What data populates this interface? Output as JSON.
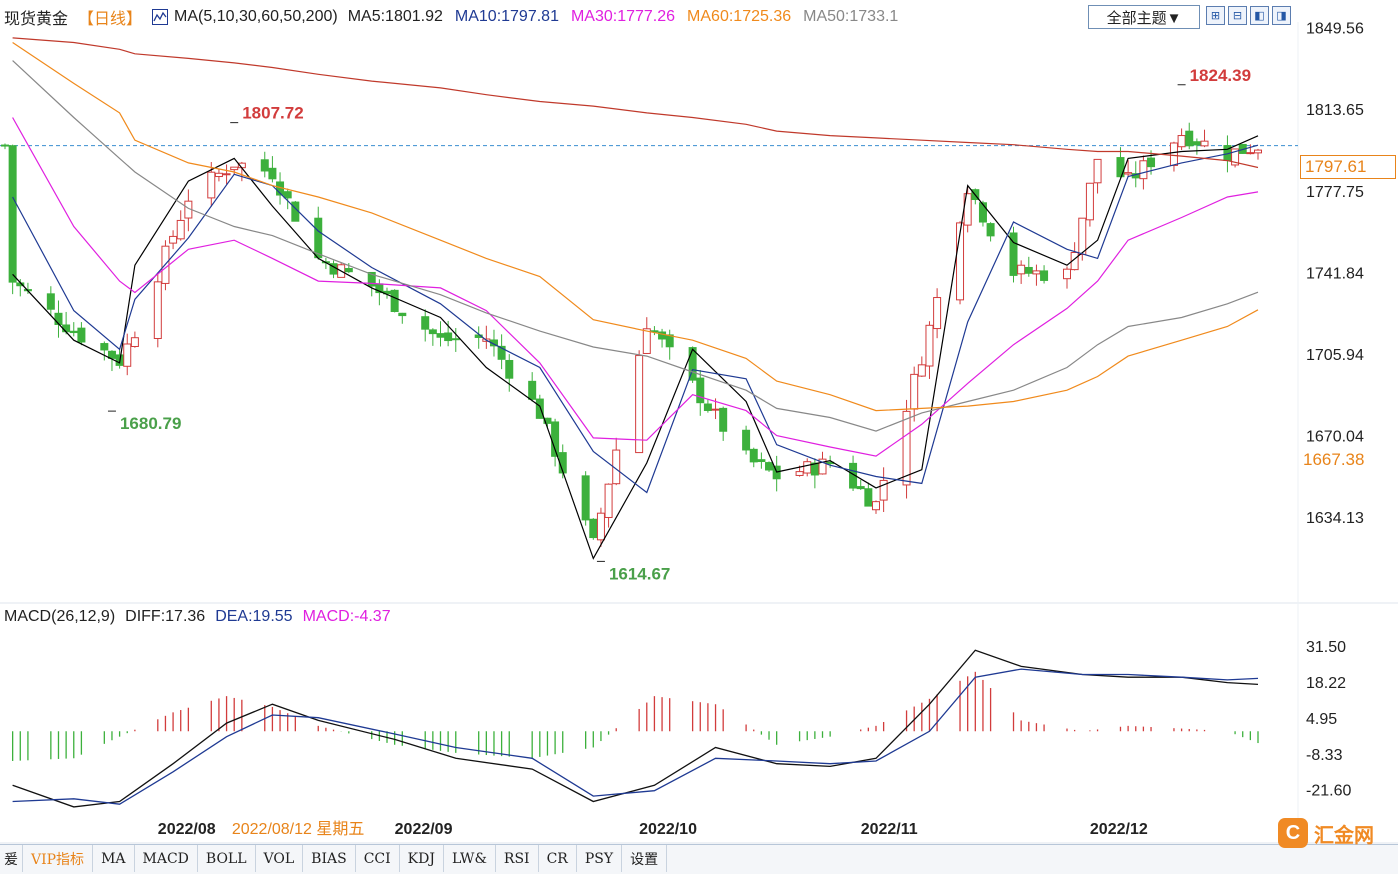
{
  "header": {
    "title": "现货黄金",
    "period": "【日线】",
    "ma_label": "MA(5,10,30,60,50,200)",
    "ma_values": [
      {
        "text": "MA5:1801.92",
        "color": "#222222"
      },
      {
        "text": "MA10:1797.81",
        "color": "#1f3a93"
      },
      {
        "text": "MA30:1777.26",
        "color": "#e020e0"
      },
      {
        "text": "MA60:1725.36",
        "color": "#f08a1c"
      },
      {
        "text": "MA50:1733.1",
        "color": "#888888"
      }
    ],
    "theme_button": "全部主题▼"
  },
  "macd_header": {
    "label": "MACD(26,12,9)",
    "diff": "DIFF:17.36",
    "dea": "DEA:19.55",
    "macd": "MACD:-4.37"
  },
  "current_price": "1797.61",
  "ma60_price": "1667.38",
  "cursor_date": "2022/08/12 星期五",
  "tabs": [
    "VIP指标",
    "MA",
    "MACD",
    "BOLL",
    "VOL",
    "BIAS",
    "CCI",
    "KDJ",
    "LW&",
    "RSI",
    "CR",
    "PSY",
    "设置"
  ],
  "logo": {
    "mark": "C",
    "text": "汇金网"
  },
  "colors": {
    "up": "#d23c3c",
    "down": "#3cb03c",
    "ma5": "#000000",
    "ma10": "#1f3a93",
    "ma30": "#e020e0",
    "ma60": "#f08a1c",
    "ma50": "#888888",
    "ma200": "#c0392b"
  },
  "chart_data": [
    {
      "type": "candlestick",
      "title": "现货黄金 日线",
      "ylim": [
        1610,
        1852
      ],
      "y_ticks": [
        1849.56,
        1813.65,
        1777.75,
        1741.84,
        1705.94,
        1670.04,
        1634.13
      ],
      "x_labels": [
        "2022/08",
        "2022/09",
        "2022/10",
        "2022/11",
        "2022/12"
      ],
      "annotations": [
        {
          "label": "1807.72",
          "kind": "high"
        },
        {
          "label": "1680.79",
          "kind": "low"
        },
        {
          "label": "1614.67",
          "kind": "low"
        },
        {
          "label": "1824.39",
          "kind": "high"
        }
      ],
      "close_path": [
        {
          "date": "2022-07-13",
          "close": 1738
        },
        {
          "date": "2022-07-21",
          "close": 1716
        },
        {
          "date": "2022-07-27",
          "close": 1703
        },
        {
          "date": "2022-07-29",
          "close": 1716
        },
        {
          "date": "2022-08-05",
          "close": 1775
        },
        {
          "date": "2022-08-11",
          "close": 1790
        },
        {
          "date": "2022-08-16",
          "close": 1786
        },
        {
          "date": "2022-08-22",
          "close": 1748
        },
        {
          "date": "2022-08-29",
          "close": 1736
        },
        {
          "date": "2022-09-07",
          "close": 1712
        },
        {
          "date": "2022-09-13",
          "close": 1713
        },
        {
          "date": "2022-09-20",
          "close": 1680
        },
        {
          "date": "2022-09-27",
          "close": 1622
        },
        {
          "date": "2022-10-04",
          "close": 1720
        },
        {
          "date": "2022-10-10",
          "close": 1692
        },
        {
          "date": "2022-10-17",
          "close": 1660
        },
        {
          "date": "2022-10-21",
          "close": 1652
        },
        {
          "date": "2022-10-28",
          "close": 1658
        },
        {
          "date": "2022-11-03",
          "close": 1640
        },
        {
          "date": "2022-11-09",
          "close": 1705
        },
        {
          "date": "2022-11-15",
          "close": 1780
        },
        {
          "date": "2022-11-21",
          "close": 1742
        },
        {
          "date": "2022-11-28",
          "close": 1741
        },
        {
          "date": "2022-12-02",
          "close": 1792
        },
        {
          "date": "2022-12-06",
          "close": 1782
        },
        {
          "date": "2022-12-13",
          "close": 1803
        },
        {
          "date": "2022-12-19",
          "close": 1794
        },
        {
          "date": "2022-12-23",
          "close": 1797.61
        }
      ],
      "series": [
        {
          "name": "MA5",
          "values": [
            1741,
            1712,
            1702,
            1745,
            1782,
            1792,
            1771,
            1748,
            1735,
            1722,
            1700,
            1683,
            1616,
            1658,
            1708,
            1685,
            1654,
            1659,
            1647,
            1655,
            1780,
            1755,
            1745,
            1756,
            1792,
            1795,
            1796,
            1801.92
          ]
        },
        {
          "name": "MA10",
          "values": [
            1775,
            1725,
            1708,
            1730,
            1757,
            1785,
            1780,
            1760,
            1744,
            1728,
            1712,
            1700,
            1663,
            1645,
            1699,
            1695,
            1666,
            1657,
            1652,
            1649,
            1720,
            1764,
            1752,
            1748,
            1784,
            1790,
            1794,
            1797.81
          ]
        },
        {
          "name": "MA30",
          "values": [
            1810,
            1762,
            1738,
            1733,
            1752,
            1756,
            1748,
            1738,
            1737,
            1735,
            1725,
            1702,
            1669,
            1668,
            1688,
            1681,
            1670,
            1665,
            1661,
            1675,
            1693,
            1710,
            1726,
            1738,
            1756,
            1766,
            1775,
            1777.26
          ]
        },
        {
          "name": "MA50",
          "values": [
            1835,
            1810,
            1792,
            1786,
            1770,
            1762,
            1758,
            1750,
            1741,
            1732,
            1724,
            1716,
            1709,
            1705,
            1698,
            1690,
            1682,
            1678,
            1672,
            1680,
            1685,
            1690,
            1700,
            1710,
            1718,
            1722,
            1728,
            1733.1
          ]
        },
        {
          "name": "MA60",
          "values": [
            1843,
            1825,
            1812,
            1800,
            1790,
            1786,
            1780,
            1775,
            1768,
            1756,
            1748,
            1740,
            1721,
            1716,
            1712,
            1704,
            1694,
            1688,
            1681,
            1682,
            1683,
            1685,
            1690,
            1696,
            1705,
            1712,
            1718,
            1725.36
          ]
        },
        {
          "name": "MA200",
          "values": [
            1845,
            1843,
            1840,
            1838,
            1836,
            1834,
            1832,
            1829,
            1826,
            1823,
            1820,
            1817,
            1815,
            1812,
            1810,
            1807,
            1804,
            1802,
            1801,
            1800,
            1799,
            1798,
            1796,
            1795,
            1795,
            1793,
            1791,
            1788
          ]
        }
      ]
    },
    {
      "type": "bar",
      "title": "MACD(26,12,9)",
      "ylim": [
        -31,
        36
      ],
      "y_ticks": [
        31.5,
        18.22,
        4.95,
        -8.33,
        -21.6
      ],
      "dates": [
        "2022-07-13",
        "2022-07-21",
        "2022-07-27",
        "2022-08-03",
        "2022-08-10",
        "2022-08-16",
        "2022-08-22",
        "2022-09-01",
        "2022-09-09",
        "2022-09-19",
        "2022-09-27",
        "2022-10-05",
        "2022-10-13",
        "2022-10-21",
        "2022-10-28",
        "2022-11-03",
        "2022-11-10",
        "2022-11-16",
        "2022-11-22",
        "2022-11-30",
        "2022-12-06",
        "2022-12-13",
        "2022-12-19",
        "2022-12-23"
      ],
      "series": [
        {
          "name": "DIFF",
          "values": [
            -20,
            -28,
            -26,
            -12,
            3,
            10,
            4,
            -3,
            -10,
            -14,
            -26,
            -20,
            -6,
            -12,
            -13,
            -10,
            10,
            30,
            24,
            21,
            20,
            20,
            18,
            17.36
          ]
        },
        {
          "name": "DEA",
          "values": [
            -26,
            -25,
            -27,
            -15,
            -2,
            6,
            5,
            -1,
            -6,
            -10,
            -24,
            -22,
            -10,
            -11,
            -12,
            -11,
            0,
            20,
            23,
            21,
            21,
            20,
            19,
            19.55
          ]
        },
        {
          "name": "MACD",
          "values": [
            -11,
            -10,
            -2,
            7,
            13,
            9,
            2,
            -5,
            -8,
            -10,
            -6,
            13,
            10,
            -5,
            -2,
            2,
            12,
            22,
            4,
            0,
            2,
            1,
            0,
            -4.37
          ]
        }
      ]
    }
  ]
}
